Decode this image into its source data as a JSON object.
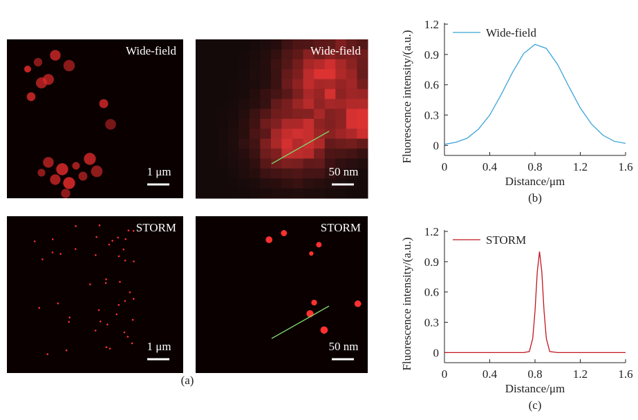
{
  "panels": {
    "images": [
      {
        "label": "Wide-field",
        "scale_bar": "1 μm"
      },
      {
        "label": "Wide-field",
        "scale_bar": "50 nm"
      },
      {
        "label": "STORM",
        "scale_bar": "1 μm"
      },
      {
        "label": "STORM",
        "scale_bar": "50 nm"
      }
    ],
    "caption": "(a)"
  },
  "chart_data": [
    {
      "type": "line",
      "caption": "(b)",
      "xlabel": "Distance/μm",
      "ylabel": "Fluorescence intensity/(a.u.)",
      "xlim": [
        0,
        1.6
      ],
      "xticks": [
        0,
        0.4,
        0.8,
        1.2,
        1.6
      ],
      "ylim": [
        -0.1,
        1.2
      ],
      "yticks": [
        0,
        0.3,
        0.6,
        0.9,
        1.2
      ],
      "legend": "upper left",
      "x": [
        0,
        0.1,
        0.2,
        0.3,
        0.4,
        0.5,
        0.6,
        0.7,
        0.8,
        0.9,
        1.0,
        1.1,
        1.2,
        1.3,
        1.4,
        1.5,
        1.6
      ],
      "series": [
        {
          "name": "Wide-field",
          "color": "#3aa3d8",
          "values": [
            0.01,
            0.03,
            0.07,
            0.16,
            0.3,
            0.5,
            0.72,
            0.91,
            1.0,
            0.96,
            0.8,
            0.58,
            0.37,
            0.21,
            0.1,
            0.04,
            0.02
          ]
        }
      ]
    },
    {
      "type": "line",
      "caption": "(c)",
      "xlabel": "Distance/μm",
      "ylabel": "Fluorescence intensity/(a.u.)",
      "xlim": [
        0,
        1.6
      ],
      "xticks": [
        0,
        0.4,
        0.8,
        1.2,
        1.6
      ],
      "ylim": [
        -0.1,
        1.2
      ],
      "yticks": [
        0,
        0.3,
        0.6,
        0.9,
        1.2
      ],
      "legend": "upper left",
      "x": [
        0,
        0.4,
        0.7,
        0.75,
        0.78,
        0.8,
        0.82,
        0.84,
        0.86,
        0.88,
        0.9,
        0.93,
        1.0,
        1.6
      ],
      "series": [
        {
          "name": "STORM",
          "color": "#c0141e",
          "values": [
            0,
            0,
            0,
            0.01,
            0.14,
            0.41,
            0.8,
            1.0,
            0.8,
            0.41,
            0.14,
            0.01,
            0,
            0
          ]
        }
      ]
    }
  ]
}
